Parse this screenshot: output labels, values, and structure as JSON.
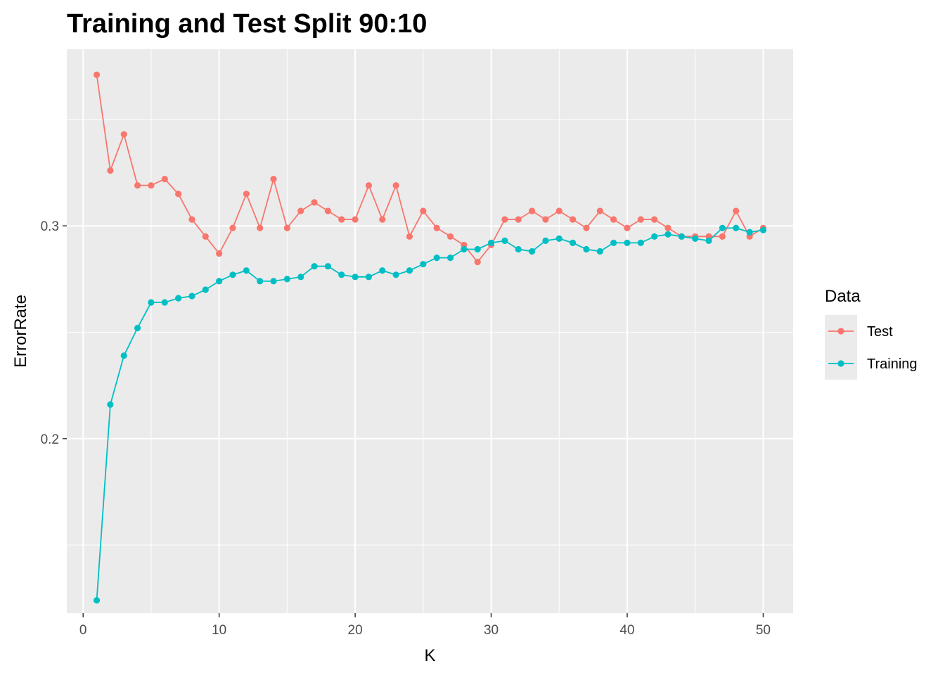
{
  "chart_data": {
    "type": "line",
    "title": "Training and Test Split 90:10",
    "xlabel": "K",
    "ylabel": "ErrorRate",
    "xlim": [
      -1.2,
      52.2
    ],
    "ylim": [
      0.118,
      0.383
    ],
    "x_ticks": [
      0,
      10,
      20,
      30,
      40,
      50
    ],
    "y_ticks": [
      0.2,
      0.3
    ],
    "x_tick_labels": [
      "0",
      "10",
      "20",
      "30",
      "40",
      "50"
    ],
    "y_tick_labels": [
      "0.2",
      "0.3"
    ],
    "grid": true,
    "legend": {
      "title": "Data",
      "position": "right"
    },
    "x": [
      1,
      2,
      3,
      4,
      5,
      6,
      7,
      8,
      9,
      10,
      11,
      12,
      13,
      14,
      15,
      16,
      17,
      18,
      19,
      20,
      21,
      22,
      23,
      24,
      25,
      26,
      27,
      28,
      29,
      30,
      31,
      32,
      33,
      34,
      35,
      36,
      37,
      38,
      39,
      40,
      41,
      42,
      43,
      44,
      45,
      46,
      47,
      48,
      49,
      50
    ],
    "series": [
      {
        "name": "Test",
        "color": "#F8766D",
        "values": [
          0.371,
          0.326,
          0.343,
          0.319,
          0.319,
          0.322,
          0.315,
          0.303,
          0.295,
          0.287,
          0.299,
          0.315,
          0.299,
          0.322,
          0.299,
          0.307,
          0.311,
          0.307,
          0.303,
          0.303,
          0.319,
          0.303,
          0.319,
          0.295,
          0.307,
          0.299,
          0.295,
          0.291,
          0.283,
          0.291,
          0.303,
          0.303,
          0.307,
          0.303,
          0.307,
          0.303,
          0.299,
          0.307,
          0.303,
          0.299,
          0.303,
          0.303,
          0.299,
          0.295,
          0.295,
          0.295,
          0.295,
          0.307,
          0.295,
          0.299
        ]
      },
      {
        "name": "Training",
        "color": "#00BFC4",
        "values": [
          0.124,
          0.216,
          0.239,
          0.252,
          0.264,
          0.264,
          0.266,
          0.267,
          0.27,
          0.274,
          0.277,
          0.279,
          0.274,
          0.274,
          0.275,
          0.276,
          0.281,
          0.281,
          0.277,
          0.276,
          0.276,
          0.279,
          0.277,
          0.279,
          0.282,
          0.285,
          0.285,
          0.289,
          0.289,
          0.292,
          0.293,
          0.289,
          0.288,
          0.293,
          0.294,
          0.292,
          0.289,
          0.288,
          0.292,
          0.292,
          0.292,
          0.295,
          0.296,
          0.295,
          0.294,
          0.293,
          0.299,
          0.299,
          0.297,
          0.298
        ]
      }
    ]
  }
}
